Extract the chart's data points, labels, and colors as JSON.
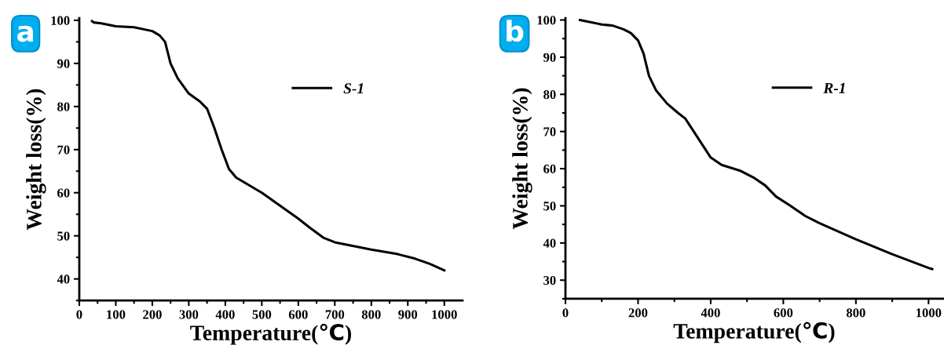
{
  "chart_data": [
    {
      "type": "line",
      "xlabel": "Temperature(℃)",
      "ylabel": "Weight loss(%)",
      "annotations": [
        "a"
      ],
      "legend": "top right",
      "grid": false,
      "xlim": [
        0,
        1050
      ],
      "ylim": [
        35,
        100.5
      ],
      "xticks": [
        0,
        {
          "value": 50,
          "label": null
        },
        100,
        {
          "value": 150,
          "label": null
        },
        200,
        {
          "value": 250,
          "label": null
        },
        300,
        {
          "value": 350,
          "label": null
        },
        400,
        {
          "value": 450,
          "label": null
        },
        500,
        {
          "value": 550,
          "label": null
        },
        600,
        {
          "value": 650,
          "label": null
        },
        700,
        {
          "value": 750,
          "label": null
        },
        800,
        {
          "value": 850,
          "label": null
        },
        900,
        {
          "value": 950,
          "label": null
        },
        1000
      ],
      "yticks": [
        {
          "value": 35,
          "label": null
        },
        40,
        {
          "value": 45,
          "label": null
        },
        50,
        {
          "value": 55,
          "label": null
        },
        60,
        {
          "value": 65,
          "label": null
        },
        70,
        {
          "value": 75,
          "label": null
        },
        80,
        {
          "value": 85,
          "label": null
        },
        90,
        {
          "value": 95,
          "label": null
        },
        100
      ],
      "series": [
        {
          "name": "S-1",
          "color": "#000000",
          "x": [
            35,
            40,
            60,
            100,
            150,
            200,
            220,
            235,
            250,
            270,
            300,
            330,
            350,
            370,
            390,
            410,
            430,
            500,
            550,
            600,
            630,
            670,
            700,
            800,
            870,
            920,
            960,
            1000
          ],
          "values": [
            99.8,
            99.5,
            99.3,
            98.6,
            98.4,
            97.5,
            96.5,
            95,
            90,
            86.5,
            83,
            81.2,
            79.5,
            75,
            70,
            65.5,
            63.5,
            60,
            57,
            54,
            52,
            49.5,
            48.5,
            46.8,
            45.8,
            44.7,
            43.5,
            42
          ]
        }
      ]
    },
    {
      "type": "line",
      "xlabel": "Temperature(℃)",
      "ylabel": "Weight loss(%)",
      "annotations": [
        "b"
      ],
      "legend": "top right",
      "grid": false,
      "xlim": [
        0,
        1040
      ],
      "ylim": [
        25,
        100.5
      ],
      "xticks": [
        0,
        {
          "value": 100,
          "label": null
        },
        200,
        {
          "value": 300,
          "label": null
        },
        400,
        {
          "value": 500,
          "label": null
        },
        600,
        {
          "value": 700,
          "label": null
        },
        800,
        {
          "value": 900,
          "label": null
        },
        1000
      ],
      "yticks": [
        {
          "value": 25,
          "label": null
        },
        30,
        {
          "value": 35,
          "label": null
        },
        40,
        {
          "value": 45,
          "label": null
        },
        50,
        {
          "value": 55,
          "label": null
        },
        60,
        {
          "value": 65,
          "label": null
        },
        70,
        {
          "value": 75,
          "label": null
        },
        80,
        {
          "value": 85,
          "label": null
        },
        90,
        {
          "value": 95,
          "label": null
        },
        100
      ],
      "series": [
        {
          "name": "R-1",
          "color": "#000000",
          "x": [
            40,
            100,
            130,
            160,
            180,
            200,
            215,
            230,
            250,
            280,
            310,
            330,
            360,
            400,
            430,
            480,
            520,
            550,
            580,
            620,
            660,
            700,
            800,
            900,
            1000,
            1010
          ],
          "values": [
            100,
            98.8,
            98.5,
            97.5,
            96.5,
            94.5,
            91,
            85,
            81,
            77.5,
            75,
            73.5,
            69,
            63,
            61,
            59.5,
            57.5,
            55.5,
            52.5,
            50,
            47.3,
            45.3,
            41,
            37,
            33.3,
            33
          ]
        }
      ]
    }
  ]
}
